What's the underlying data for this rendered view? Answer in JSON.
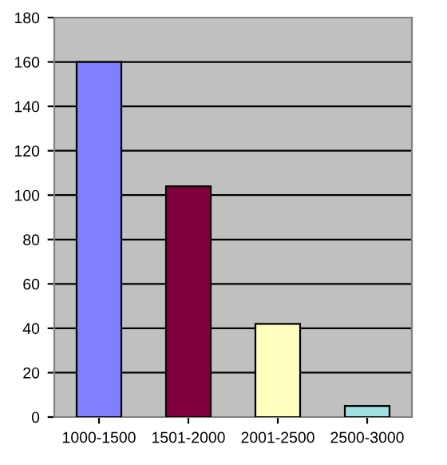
{
  "chart_data": {
    "type": "bar",
    "categories": [
      "1000-1500",
      "1501-2000",
      "2001-2500",
      "2500-3000"
    ],
    "values": [
      160,
      104,
      42,
      5
    ],
    "colors": [
      "#8080ff",
      "#800040",
      "#ffffc0",
      "#a0e0e0"
    ],
    "ylim": [
      0,
      180
    ],
    "yticks": [
      0,
      20,
      40,
      60,
      80,
      100,
      120,
      140,
      160,
      180
    ],
    "grid": "y"
  }
}
